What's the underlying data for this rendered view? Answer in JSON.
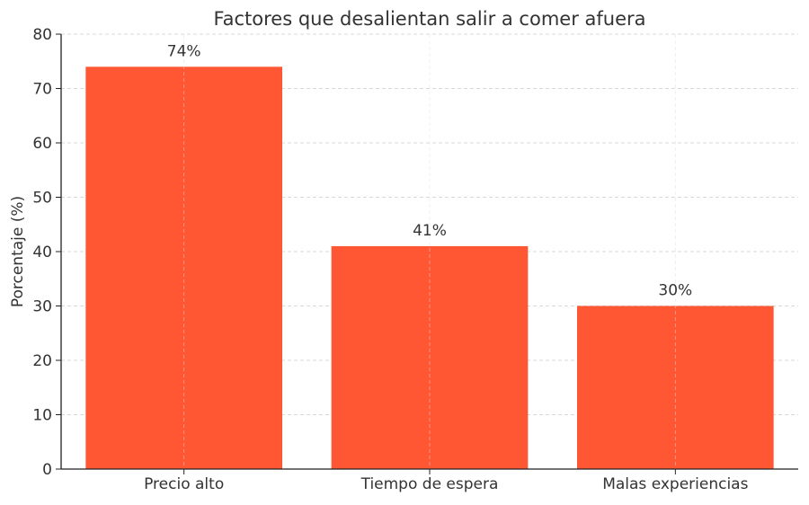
{
  "chart_data": {
    "type": "bar",
    "title": "Factores que desalientan salir a comer afuera",
    "xlabel": "",
    "ylabel": "Porcentaje (%)",
    "categories": [
      "Precio alto",
      "Tiempo de espera",
      "Malas experiencias"
    ],
    "values": [
      74,
      41,
      30
    ],
    "data_labels": [
      "74%",
      "41%",
      "30%"
    ],
    "ylim": [
      0,
      80
    ],
    "yticks": [
      0,
      10,
      20,
      30,
      40,
      50,
      60,
      70,
      80
    ],
    "grid": true,
    "bar_color": "#FF5733"
  }
}
